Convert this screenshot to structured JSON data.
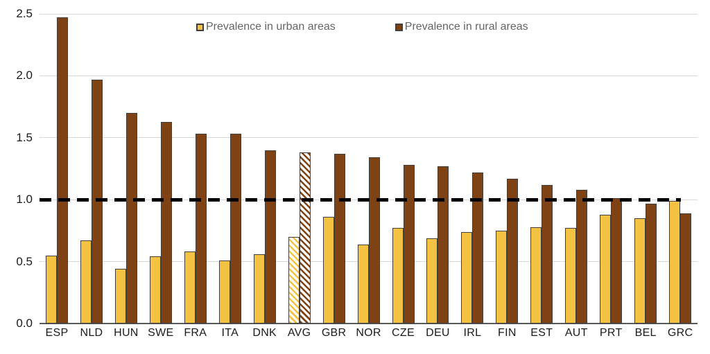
{
  "chart_data": {
    "type": "bar",
    "title": "",
    "xlabel": "",
    "ylabel": "",
    "categories": [
      "ESP",
      "NLD",
      "HUN",
      "SWE",
      "FRA",
      "ITA",
      "DNK",
      "AVG",
      "GBR",
      "NOR",
      "CZE",
      "DEU",
      "IRL",
      "FIN",
      "EST",
      "AUT",
      "PRT",
      "BEL",
      "GRC"
    ],
    "series": [
      {
        "name": "Prevalence in urban areas",
        "color": "#f3c243",
        "values": [
          0.55,
          0.67,
          0.44,
          0.54,
          0.58,
          0.51,
          0.56,
          0.7,
          0.86,
          0.64,
          0.77,
          0.69,
          0.74,
          0.75,
          0.78,
          0.77,
          0.88,
          0.85,
          0.99
        ]
      },
      {
        "name": "Prevalence in rural areas",
        "color": "#7e4214",
        "values": [
          2.47,
          1.97,
          1.7,
          1.63,
          1.53,
          1.53,
          1.4,
          1.38,
          1.37,
          1.34,
          1.28,
          1.27,
          1.22,
          1.17,
          1.12,
          1.08,
          1.01,
          0.97,
          0.89
        ]
      }
    ],
    "hatched_category": "AVG",
    "reference_line": {
      "value": 1.0,
      "style": "dashed",
      "color": "#000000"
    },
    "ylim": [
      0.0,
      2.5
    ],
    "yticks": [
      "0.0",
      "0.5",
      "1.0",
      "1.5",
      "2.0",
      "2.5"
    ],
    "grid": true,
    "legend_position": "top-center"
  },
  "colors": {
    "background": "#ffffff",
    "bar_border": "#3f3f3f",
    "gridline": "#d8d8d8",
    "axis_line": "#595959",
    "tick_label": "#1a1a1a",
    "legend_text": "#646464",
    "hatch_background": "#ffffff"
  }
}
